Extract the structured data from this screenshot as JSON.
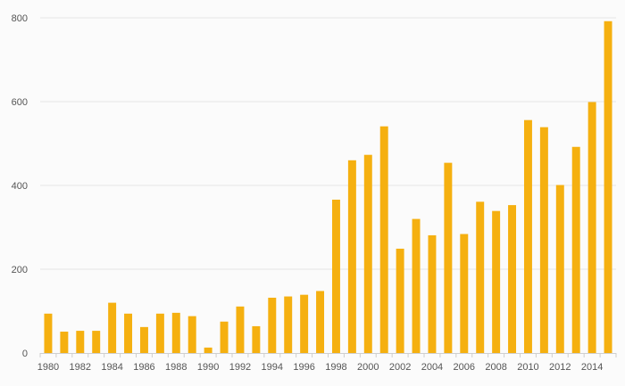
{
  "chart_data": {
    "type": "bar",
    "title": "",
    "xlabel": "",
    "ylabel": "",
    "ylim": [
      0,
      800
    ],
    "yticks": [
      0,
      200,
      400,
      600,
      800
    ],
    "grid": "horizontal",
    "bar_color": "#f5b010",
    "x_tick_labels": [
      "1980",
      "1982",
      "1984",
      "1986",
      "1988",
      "1990",
      "1992",
      "1994",
      "1996",
      "1998",
      "2000",
      "2002",
      "2004",
      "2006",
      "2008",
      "2010",
      "2012",
      "2014"
    ],
    "categories": [
      "1980",
      "1981",
      "1982",
      "1983",
      "1984",
      "1985",
      "1986",
      "1987",
      "1988",
      "1989",
      "1990",
      "1991",
      "1992",
      "1993",
      "1994",
      "1995",
      "1996",
      "1997",
      "1998",
      "1999",
      "2000",
      "2001",
      "2002",
      "2003",
      "2004",
      "2005",
      "2006",
      "2007",
      "2008",
      "2009",
      "2010",
      "2011",
      "2012",
      "2013",
      "2014",
      "2015"
    ],
    "values": [
      94,
      51,
      53,
      53,
      120,
      94,
      62,
      94,
      96,
      88,
      13,
      75,
      111,
      64,
      132,
      135,
      139,
      148,
      366,
      460,
      473,
      541,
      249,
      320,
      281,
      454,
      284,
      361,
      339,
      353,
      556,
      539,
      401,
      492,
      599,
      792
    ]
  }
}
